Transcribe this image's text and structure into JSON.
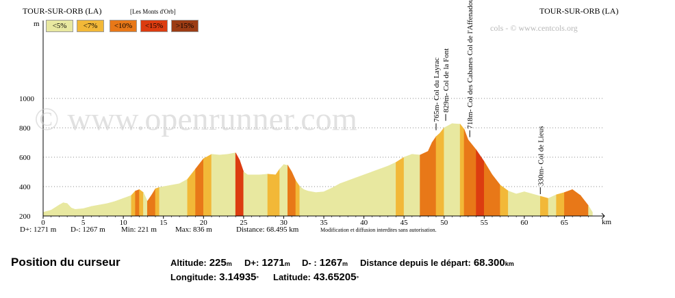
{
  "header": {
    "start_name": "TOUR-SUR-ORB (LA)",
    "end_name": "TOUR-SUR-ORB (LA)",
    "region": "[Les Monts d'Orb]",
    "credit": "cols - © www.centcols.org",
    "watermark": "© www.openrunner.com"
  },
  "legend": [
    {
      "label": "<5%",
      "color": "#e8e8a0"
    },
    {
      "label": "<7%",
      "color": "#f2b838"
    },
    {
      "label": "<10%",
      "color": "#e87818"
    },
    {
      "label": "<15%",
      "color": "#dc3c10"
    },
    {
      "label": ">15%",
      "color": "#9c3c14"
    }
  ],
  "chart_data": {
    "type": "area",
    "title": "",
    "xlabel": "km",
    "ylabel": "m",
    "xlim": [
      0,
      70
    ],
    "ylim": [
      200,
      1000
    ],
    "x_ticks": [
      0,
      5,
      10,
      15,
      20,
      25,
      30,
      35,
      40,
      45,
      50,
      55,
      60,
      65
    ],
    "y_ticks": [
      200,
      400,
      600,
      800,
      1000
    ],
    "grid": true,
    "series": [
      {
        "x": [
          0,
          1,
          2,
          2.5,
          3,
          3.5,
          4,
          5,
          6,
          7,
          8,
          9,
          10,
          11,
          11.5,
          12,
          12.5,
          13,
          13.5,
          14,
          14.5,
          15,
          16,
          17,
          18,
          19,
          20,
          21,
          22,
          23,
          24,
          24.5,
          25,
          25.5,
          26,
          27,
          28,
          29,
          29.5,
          30,
          30.5,
          31,
          31.5,
          32,
          32.5,
          33,
          34,
          35,
          36,
          37,
          38,
          39,
          40,
          41,
          42,
          43,
          44,
          45,
          46,
          47,
          48,
          48.5,
          49,
          49.5,
          50,
          51,
          52,
          52.5,
          53,
          54,
          55,
          56,
          57,
          58,
          59,
          60,
          61,
          62,
          63,
          64,
          65,
          66,
          67,
          68,
          68.5
        ],
        "y": [
          225,
          240,
          275,
          290,
          285,
          255,
          245,
          250,
          265,
          275,
          285,
          300,
          320,
          340,
          370,
          380,
          360,
          300,
          340,
          385,
          395,
          400,
          410,
          420,
          450,
          520,
          590,
          620,
          615,
          620,
          630,
          580,
          500,
          480,
          480,
          480,
          485,
          480,
          520,
          550,
          545,
          500,
          440,
          400,
          380,
          370,
          360,
          365,
          390,
          420,
          440,
          460,
          480,
          500,
          520,
          540,
          565,
          600,
          620,
          615,
          640,
          700,
          740,
          765,
          800,
          829,
          825,
          790,
          718,
          650,
          570,
          480,
          410,
          370,
          350,
          365,
          350,
          335,
          320,
          345,
          360,
          380,
          340,
          270,
          225
        ],
        "colors": [
          "#e8e8a0",
          "#e8e8a0",
          "#e8e8a0",
          "#e8e8a0",
          "#e8e8a0",
          "#e8e8a0",
          "#e8e8a0",
          "#e8e8a0",
          "#e8e8a0",
          "#e8e8a0",
          "#e8e8a0",
          "#e8e8a0",
          "#e8e8a0",
          "#f2b838",
          "#e87818",
          "#f2b838",
          "#e8e8a0",
          "#e87818",
          "#e87818",
          "#f2b838",
          "#e8e8a0",
          "#e8e8a0",
          "#e8e8a0",
          "#e8e8a0",
          "#f2b838",
          "#e87818",
          "#f2b838",
          "#e8e8a0",
          "#e8e8a0",
          "#e8e8a0",
          "#dc3c10",
          "#dc3c10",
          "#e8e8a0",
          "#e8e8a0",
          "#e8e8a0",
          "#e8e8a0",
          "#f2b838",
          "#f2b838",
          "#e8e8a0",
          "#e8e8a0",
          "#e87818",
          "#e87818",
          "#f2b838",
          "#e8e8a0",
          "#e8e8a0",
          "#e8e8a0",
          "#e8e8a0",
          "#e8e8a0",
          "#e8e8a0",
          "#e8e8a0",
          "#e8e8a0",
          "#e8e8a0",
          "#e8e8a0",
          "#e8e8a0",
          "#e8e8a0",
          "#e8e8a0",
          "#f2b838",
          "#e8e8a0",
          "#e8e8a0",
          "#e87818",
          "#e87818",
          "#e87818",
          "#f2b838",
          "#f2b838",
          "#e8e8a0",
          "#e8e8a0",
          "#f2b838",
          "#e87818",
          "#e87818",
          "#dc3c10",
          "#e87818",
          "#e87818",
          "#f2b838",
          "#e8e8a0",
          "#e8e8a0",
          "#e8e8a0",
          "#e8e8a0",
          "#f2b838",
          "#e8e8a0",
          "#f2b838",
          "#e87818",
          "#e87818",
          "#e87818"
        ]
      }
    ],
    "annotations": [
      {
        "x": 49.0,
        "y": 765,
        "text": "765m- Col du Layrac"
      },
      {
        "x": 50.2,
        "y": 829,
        "text": "829m- Col de la Font"
      },
      {
        "x": 53.2,
        "y": 718,
        "text": "718m- Col des Cabanes Col de l'Affenadou"
      },
      {
        "x": 62.0,
        "y": 330,
        "text": "330m- Col de Lieus"
      }
    ]
  },
  "stats": {
    "d_plus": "D+: 1271 m",
    "d_minus": "D-: 1267 m",
    "min": "Min: 221 m",
    "max": "Max: 836 m",
    "distance": "Distance: 68.495 km",
    "notice": "Modification et diffusion interdites sans autorisation."
  },
  "cursor": {
    "title": "Position du curseur",
    "altitude_label": "Altitude:",
    "altitude_value": "225",
    "altitude_unit": "m",
    "dplus_label": "D+:",
    "dplus_value": "1271",
    "dplus_unit": "m",
    "dminus_label": "D- :",
    "dminus_value": "1267",
    "dminus_unit": "m",
    "distance_label": "Distance depuis le départ:",
    "distance_value": "68.300",
    "distance_unit": "km",
    "longitude_label": "Longitude:",
    "longitude_value": "3.14935",
    "longitude_unit": "°",
    "latitude_label": "Latitude:",
    "latitude_value": "43.65205",
    "latitude_unit": "°"
  }
}
